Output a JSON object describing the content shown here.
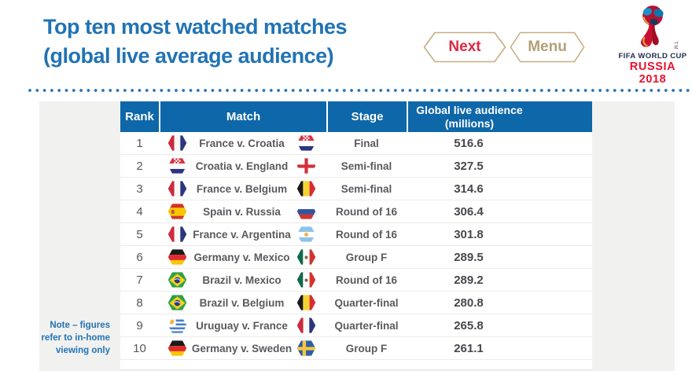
{
  "page": {
    "title_line1": "Top ten most watched matches",
    "title_line2": "(global live average audience)"
  },
  "nav": {
    "next_label": "Next",
    "menu_label": "Menu"
  },
  "logo": {
    "line1": "FIFA WORLD CUP",
    "line2": "RUSSIA 2018",
    "tm": "TM"
  },
  "note": {
    "line1": "Note – figures",
    "line2": "refer to in-home",
    "line3": "viewing only"
  },
  "colors": {
    "brand_blue": "#2173B4",
    "table_header_blue": "#0E67A9",
    "accent_red": "#DC2843",
    "logo_red": "#E8112D",
    "button_border_tan": "#C7AE7E",
    "menu_text_tan": "#B3A078",
    "body_text_gray": "#55565A",
    "panel_gray": "#F1F1F0"
  },
  "table": {
    "columns": {
      "rank": "Rank",
      "match": "Match",
      "stage": "Stage",
      "audience_line1": "Global live audience",
      "audience_line2": "(millions)"
    },
    "rows": [
      {
        "rank": "1",
        "match": "France v. Croatia",
        "home_flag": "france",
        "away_flag": "croatia",
        "stage": "Final",
        "audience": "516.6"
      },
      {
        "rank": "2",
        "match": "Croatia v. England",
        "home_flag": "croatia",
        "away_flag": "england",
        "stage": "Semi-final",
        "audience": "327.5"
      },
      {
        "rank": "3",
        "match": "France v. Belgium",
        "home_flag": "france",
        "away_flag": "belgium",
        "stage": "Semi-final",
        "audience": "314.6"
      },
      {
        "rank": "4",
        "match": "Spain v. Russia",
        "home_flag": "spain",
        "away_flag": "russia",
        "stage": "Round of 16",
        "audience": "306.4"
      },
      {
        "rank": "5",
        "match": "France v. Argentina",
        "home_flag": "france",
        "away_flag": "argentina",
        "stage": "Round of 16",
        "audience": "301.8"
      },
      {
        "rank": "6",
        "match": "Germany v. Mexico",
        "home_flag": "germany",
        "away_flag": "mexico",
        "stage": "Group F",
        "audience": "289.5"
      },
      {
        "rank": "7",
        "match": "Brazil v. Mexico",
        "home_flag": "brazil",
        "away_flag": "mexico",
        "stage": "Round of 16",
        "audience": "289.2"
      },
      {
        "rank": "8",
        "match": "Brazil v. Belgium",
        "home_flag": "brazil",
        "away_flag": "belgium",
        "stage": "Quarter-final",
        "audience": "280.8"
      },
      {
        "rank": "9",
        "match": "Uruguay v. France",
        "home_flag": "uruguay",
        "away_flag": "france",
        "stage": "Quarter-final",
        "audience": "265.8"
      },
      {
        "rank": "10",
        "match": "Germany v. Sweden",
        "home_flag": "germany",
        "away_flag": "sweden",
        "stage": "Group F",
        "audience": "261.1"
      }
    ]
  }
}
